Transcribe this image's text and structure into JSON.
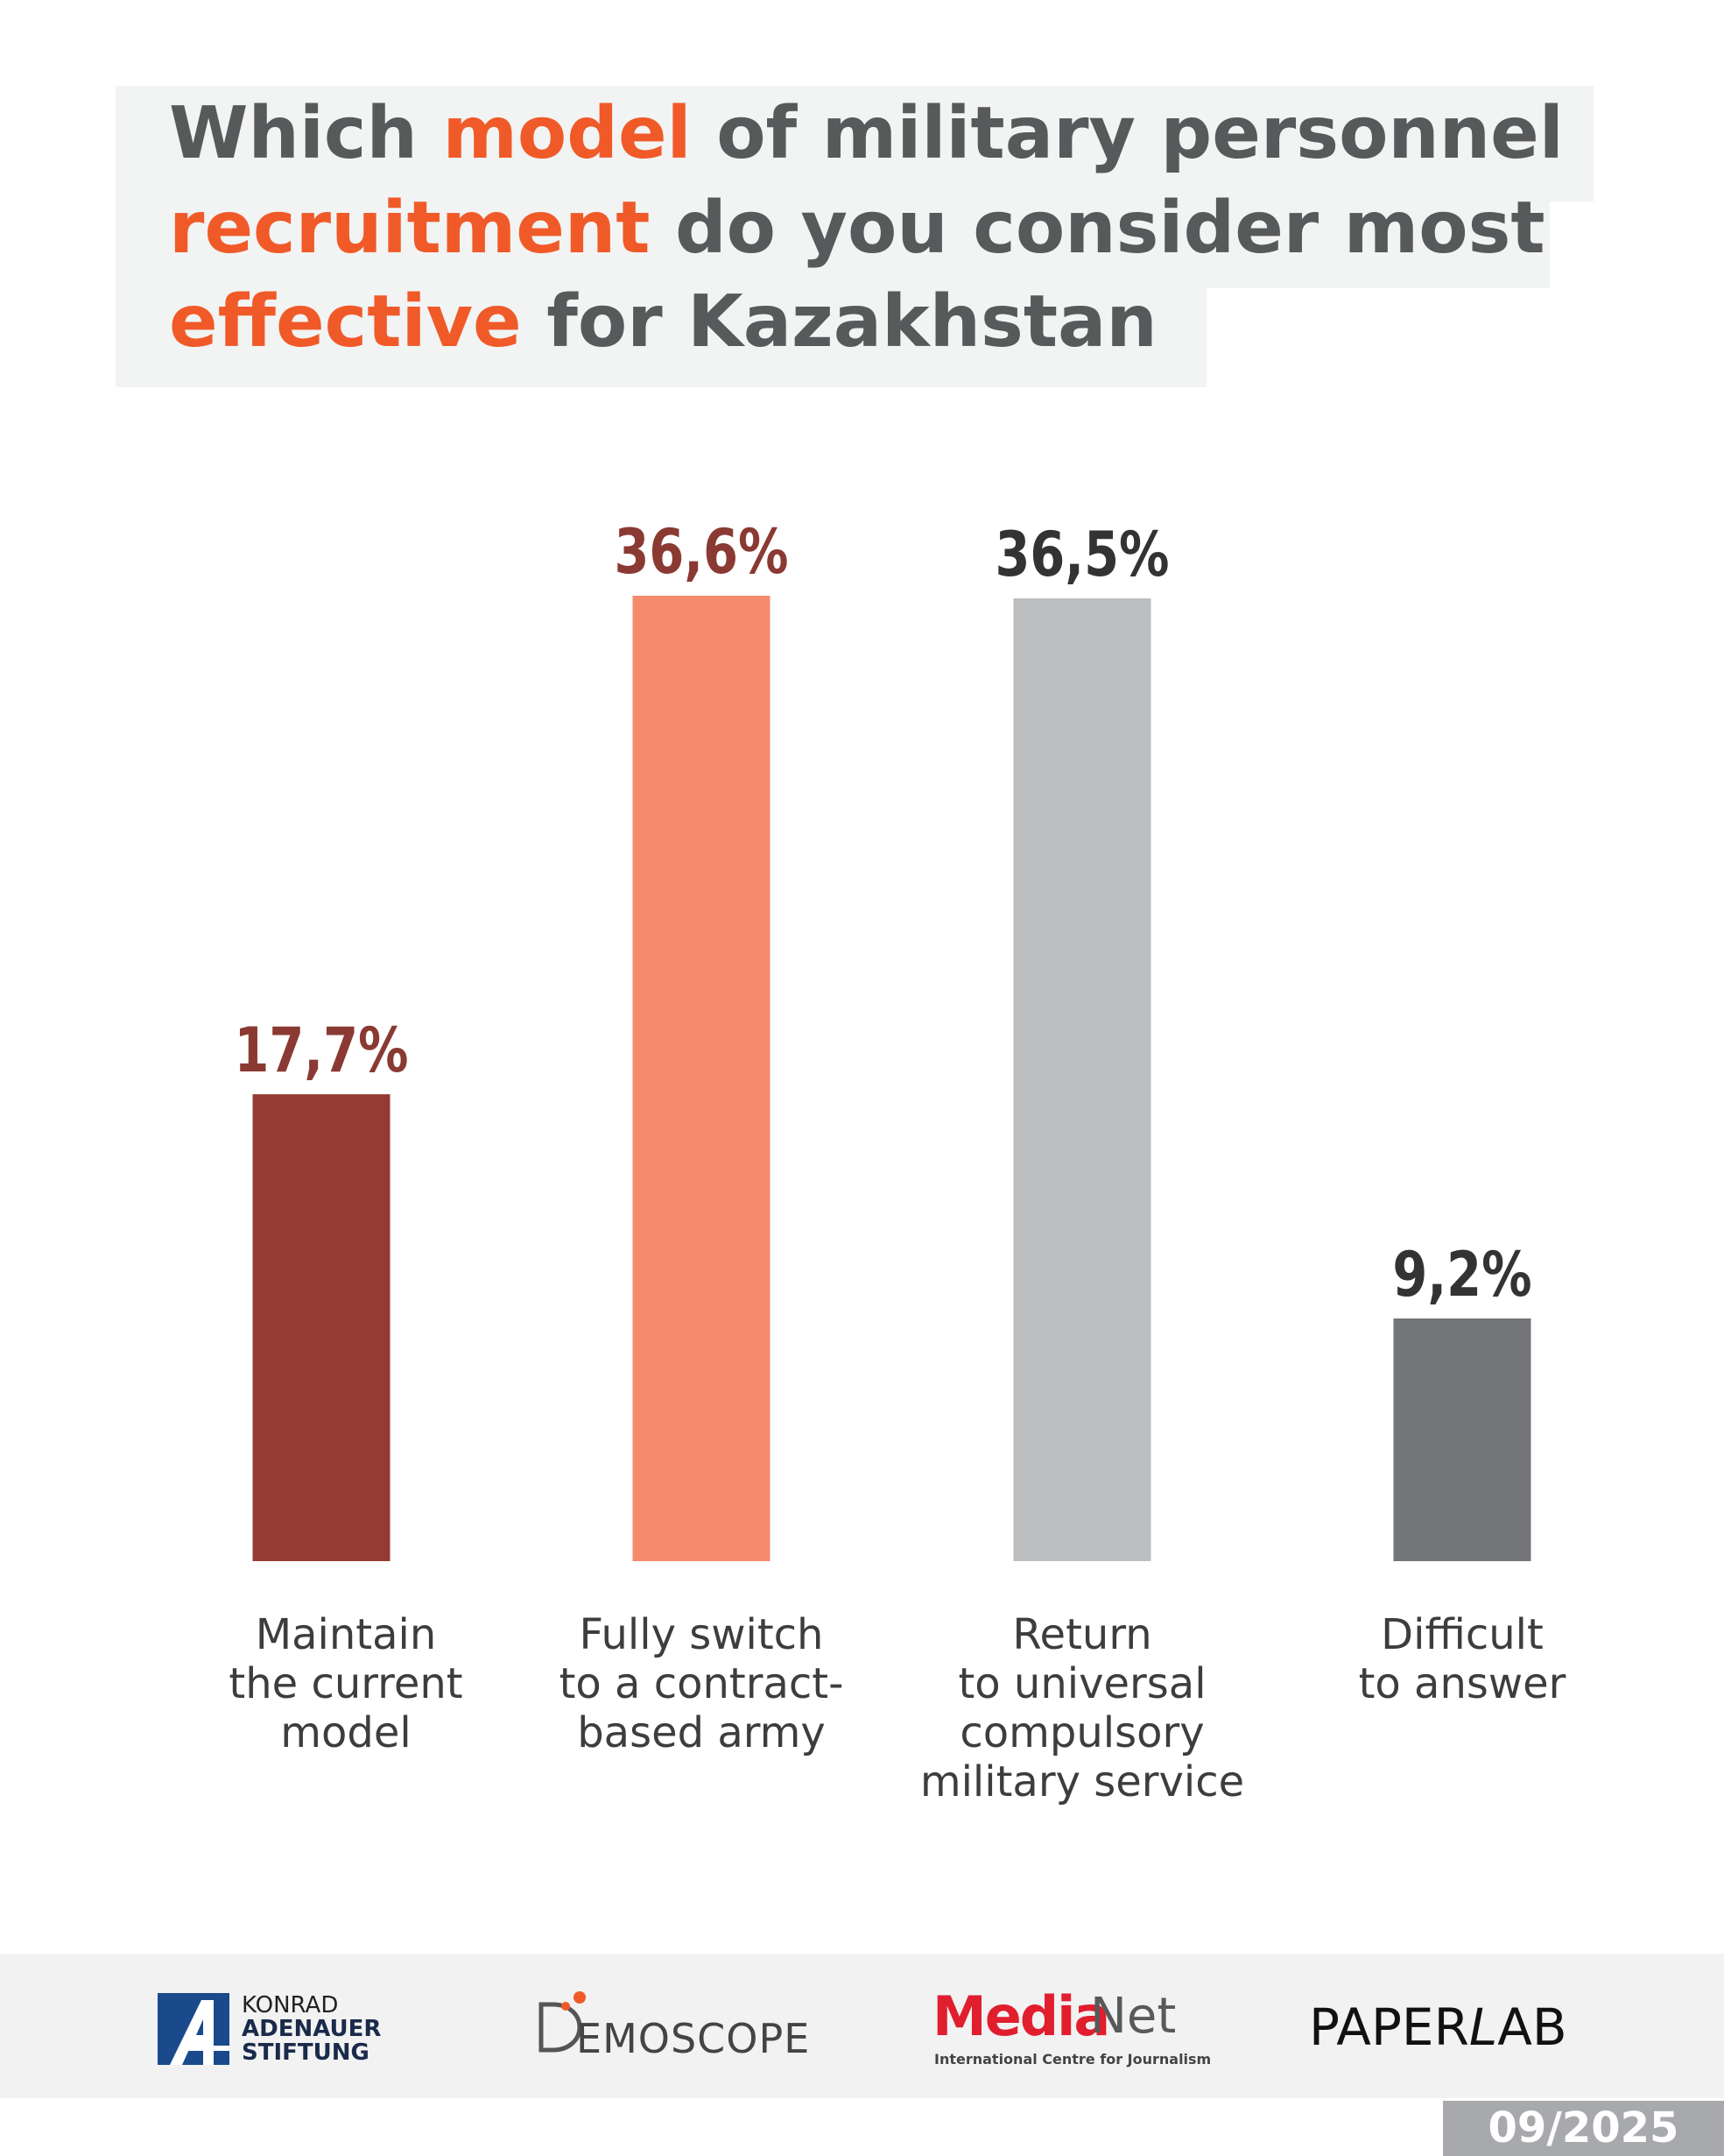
{
  "title": {
    "line1": [
      {
        "text": "Which ",
        "accent": false
      },
      {
        "text": "model",
        "accent": true
      },
      {
        "text": " of military personnel",
        "accent": false
      }
    ],
    "line2": [
      {
        "text": "recruitment",
        "accent": true
      },
      {
        "text": " do you consider most",
        "accent": false
      }
    ],
    "line3": [
      {
        "text": "effective",
        "accent": true
      },
      {
        "text": " for Kazakhstan",
        "accent": false
      }
    ]
  },
  "chart_data": {
    "type": "bar",
    "categories": [
      [
        "Maintain",
        "the current",
        "model"
      ],
      [
        "Fully switch",
        "to a contract-",
        "based army"
      ],
      [
        "Return",
        "to universal",
        "compulsory",
        "military service"
      ],
      [
        "Difficult",
        "to answer"
      ]
    ],
    "values": [
      17.7,
      36.6,
      36.5,
      9.2
    ],
    "value_labels": [
      "17,7%",
      "36,6%",
      "36,5%",
      "9,2%"
    ],
    "colors": [
      "#943c33",
      "#f58b6c",
      "#bcbdbf",
      "#747578"
    ],
    "label_colors": [
      "#8a3a33",
      "#8a3a33",
      "#333333",
      "#333333"
    ],
    "ylim": [
      0,
      36.6
    ],
    "grid": false,
    "legend": "none"
  },
  "footer": {
    "kas": {
      "line1": "KONRAD",
      "line2": "ADENAUER",
      "line3": "STIFTUNG"
    },
    "demoscope": {
      "text": "EMOSCOPE"
    },
    "medianet": {
      "media": "Media",
      "net": "Net",
      "sub": "International Centre for Journalism"
    },
    "paperlab": {
      "paper": "PAPER",
      "l": "L",
      "ab": "AB"
    },
    "date": "09/2025"
  }
}
